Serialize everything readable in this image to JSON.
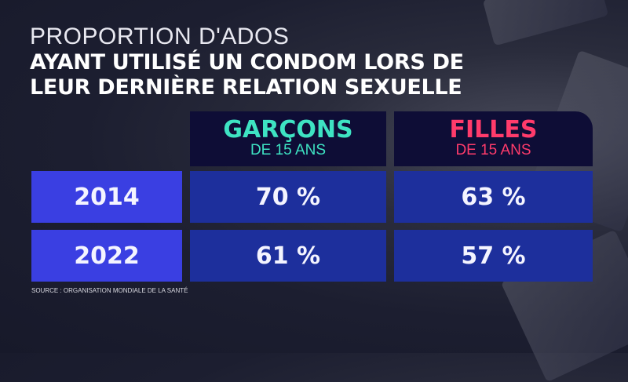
{
  "title_line1": "PROPORTION D'ADOS",
  "title_line2": "AYANT UTILISÉ UN CONDOM LORS DE",
  "title_line3": "LEUR DERNIÈRE RELATION SEXUELLE",
  "colors": {
    "boys": "#3ee3c3",
    "girls": "#ff3b6b",
    "year_cell": "#3a3fe2",
    "value_cell": "#1d2f9c",
    "header": "#0e0d36"
  },
  "chart_data": {
    "type": "table",
    "title": "PROPORTION D'ADOS AYANT UTILISÉ UN CONDOM LORS DE LEUR DERNIÈRE RELATION SEXUELLE",
    "columns": [
      {
        "name": "GARÇONS",
        "sub": "DE 15 ANS"
      },
      {
        "name": "FILLES",
        "sub": "DE 15 ANS"
      }
    ],
    "rows": [
      {
        "year": "2014",
        "values": [
          "70 %",
          "63 %"
        ]
      },
      {
        "year": "2022",
        "values": [
          "61 %",
          "57 %"
        ]
      }
    ],
    "series": [
      {
        "name": "Garçons",
        "values": [
          70,
          61
        ]
      },
      {
        "name": "Filles",
        "values": [
          63,
          57
        ]
      }
    ],
    "categories": [
      "2014",
      "2022"
    ]
  },
  "source": "SOURCE : ORGANISATION MONDIALE DE LA SANTÉ"
}
